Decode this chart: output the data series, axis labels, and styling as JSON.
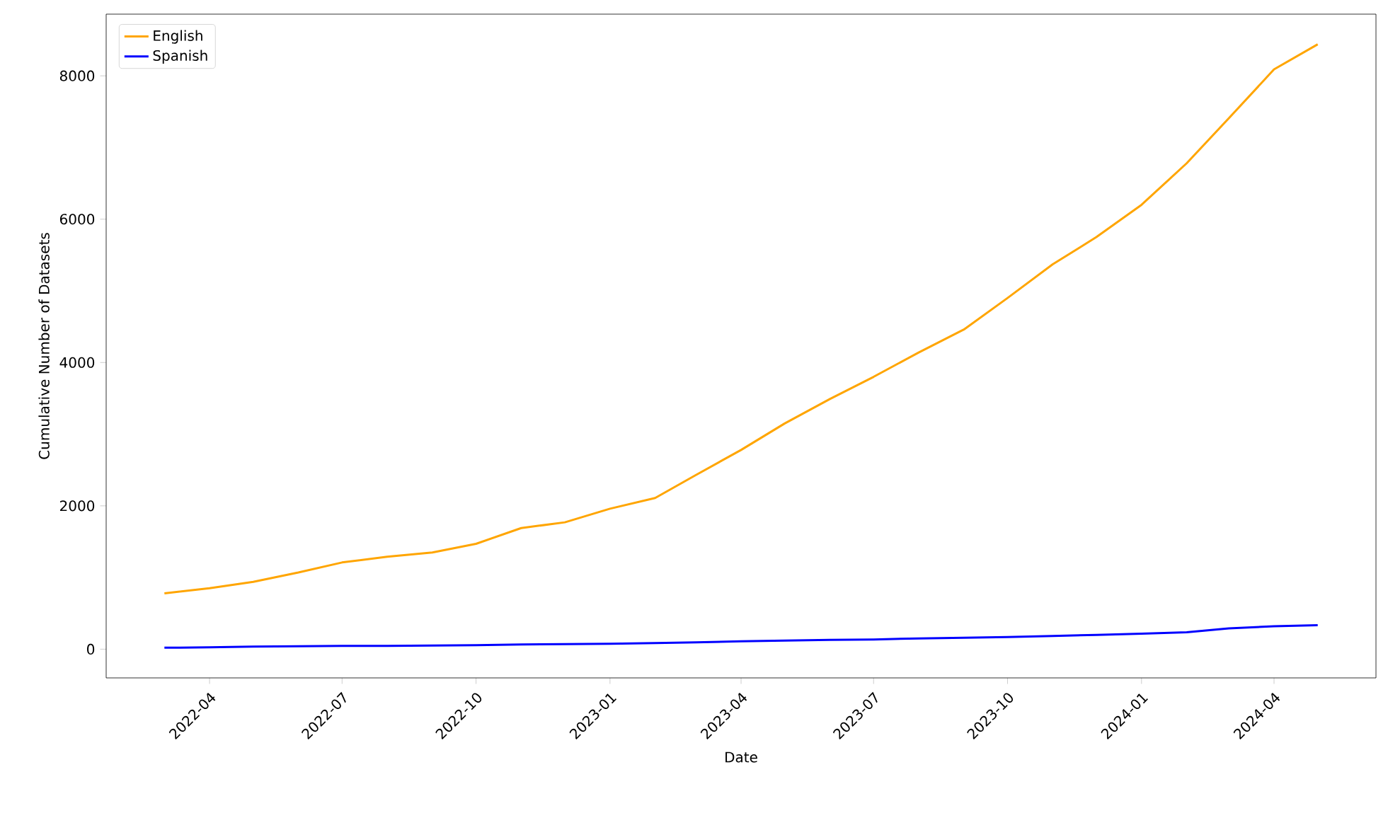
{
  "chart_data": {
    "type": "line",
    "xlabel": "Date",
    "ylabel": "Cumulative Number of Datasets",
    "x": [
      "2022-03",
      "2022-04",
      "2022-05",
      "2022-06",
      "2022-07",
      "2022-08",
      "2022-09",
      "2022-10",
      "2022-11",
      "2022-12",
      "2023-01",
      "2023-02",
      "2023-03",
      "2023-04",
      "2023-05",
      "2023-06",
      "2023-07",
      "2023-08",
      "2023-09",
      "2023-10",
      "2023-11",
      "2023-12",
      "2024-01",
      "2024-02",
      "2024-03",
      "2024-04",
      "2024-05"
    ],
    "series": [
      {
        "name": "English",
        "color": "#ffa500",
        "values": [
          780,
          850,
          940,
          1070,
          1210,
          1290,
          1350,
          1470,
          1690,
          1770,
          1960,
          2110,
          2430,
          2780,
          3150,
          3490,
          3800,
          4140,
          4460,
          4900,
          5370,
          5750,
          6200,
          6780,
          7410,
          8090,
          8440
        ]
      },
      {
        "name": "Spanish",
        "color": "#0000ff",
        "values": [
          20,
          25,
          35,
          40,
          45,
          45,
          50,
          55,
          65,
          70,
          75,
          85,
          95,
          110,
          120,
          130,
          135,
          150,
          160,
          170,
          185,
          200,
          215,
          235,
          290,
          320,
          335
        ]
      }
    ],
    "xlim": [
      "2022-01-20",
      "2024-06-10"
    ],
    "xticks": [
      "2022-04",
      "2022-07",
      "2022-10",
      "2023-01",
      "2023-04",
      "2023-07",
      "2023-10",
      "2024-01",
      "2024-04"
    ],
    "ylim": [
      -401,
      8861
    ],
    "yticks": [
      0,
      2000,
      4000,
      6000,
      8000
    ],
    "legend": "top left",
    "grid": false,
    "marker": "none",
    "line_style": "solid"
  }
}
